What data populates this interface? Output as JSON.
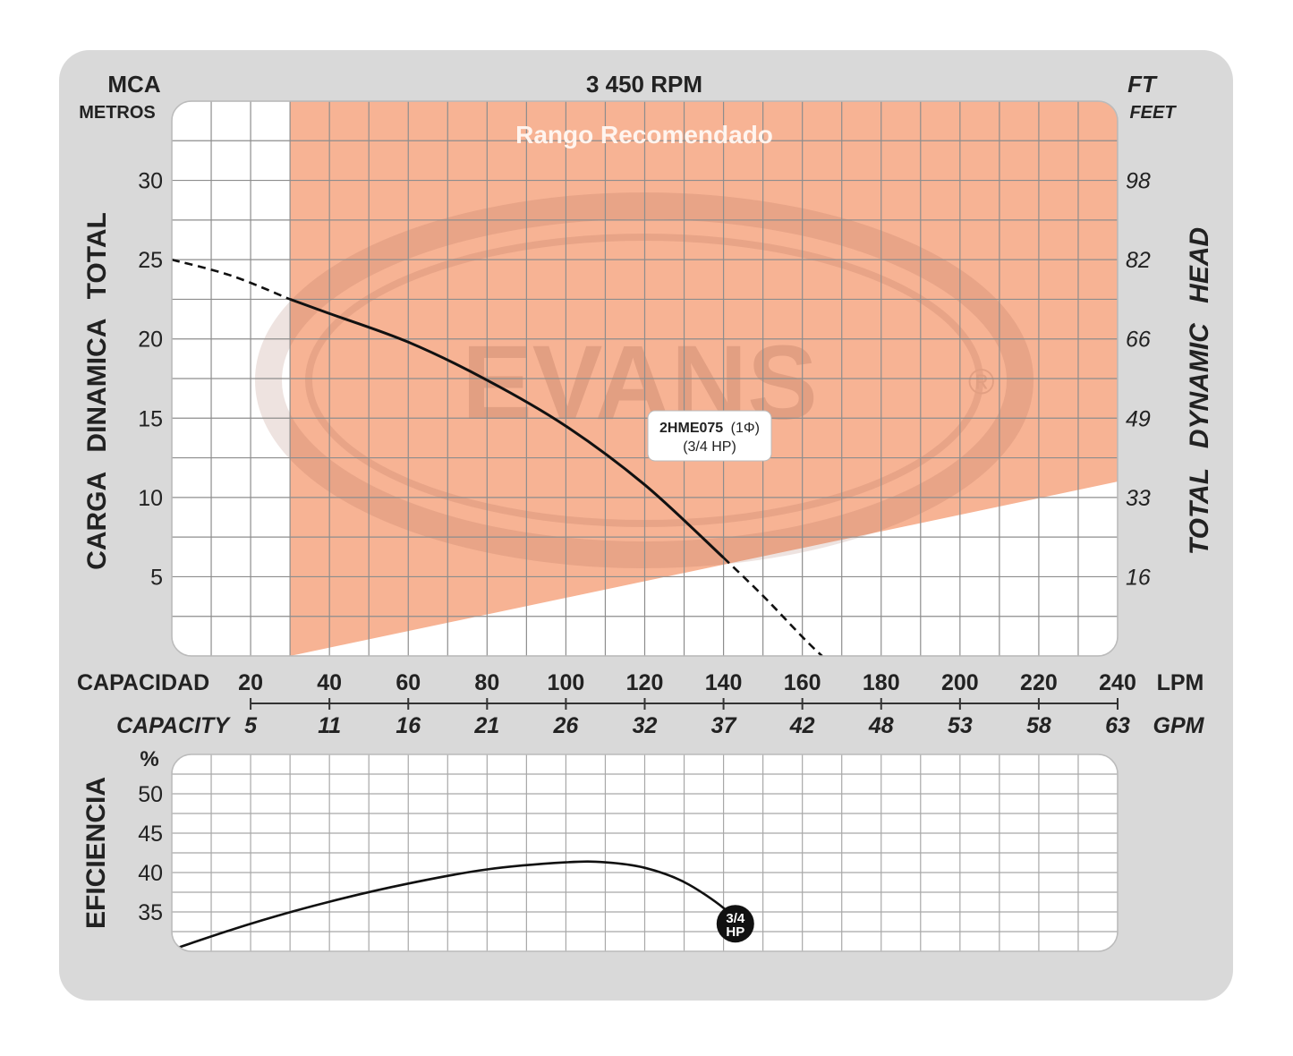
{
  "chart_data": [
    {
      "type": "line",
      "title": "3 450 RPM",
      "ylabel_left": "CARGA DINAMICA TOTAL",
      "yunit_left": "MCA",
      "yunit_left_sub": "METROS",
      "ylabel_right": "TOTAL DYNAMIC HEAD",
      "yunit_right": "FT",
      "yunit_right_sub": "FEET",
      "ylim": [
        0,
        35
      ],
      "yticks_left": [
        5,
        10,
        15,
        20,
        25,
        30
      ],
      "yticks_right": [
        "16",
        "33",
        "49",
        "66",
        "82",
        "98"
      ],
      "xlabel": "CAPACIDAD",
      "xlabel_en": "CAPACITY",
      "xunit": "LPM",
      "xunit_en": "GPM",
      "xlim": [
        0,
        240
      ],
      "xticks_lpm": [
        "20",
        "40",
        "60",
        "80",
        "100",
        "120",
        "140",
        "160",
        "180",
        "200",
        "220",
        "240"
      ],
      "xticks_gpm": [
        "5",
        "11",
        "16",
        "21",
        "26",
        "32",
        "37",
        "42",
        "48",
        "53",
        "58",
        "63"
      ],
      "grid": true,
      "recommended_range": {
        "label": "Rango Recomendado",
        "x_start": 30,
        "x_end": 240,
        "upper": 35,
        "lower_boundary": [
          [
            30,
            0
          ],
          [
            240,
            11
          ]
        ],
        "color": "#f7b394"
      },
      "watermark": "EVANS",
      "series": [
        {
          "name": "2HME075",
          "phase": "(1Φ)",
          "power": "(3/4 HP)",
          "solid": [
            [
              30,
              22.5
            ],
            [
              40,
              21.6
            ],
            [
              60,
              19.8
            ],
            [
              80,
              17.4
            ],
            [
              100,
              14.5
            ],
            [
              120,
              10.8
            ],
            [
              140,
              6.2
            ]
          ],
          "dashed_start": [
            [
              0,
              25
            ],
            [
              15,
              24
            ],
            [
              30,
              22.5
            ]
          ],
          "dashed_end": [
            [
              140,
              6.2
            ],
            [
              150,
              3.8
            ],
            [
              160,
              1.2
            ],
            [
              165,
              0
            ]
          ]
        }
      ]
    },
    {
      "type": "line",
      "ylabel": "EFICIENCIA",
      "yunit": "%",
      "ylim": [
        30,
        55
      ],
      "yticks": [
        35,
        40,
        45,
        50
      ],
      "xlim": [
        0,
        240
      ],
      "grid": true,
      "series": [
        {
          "name": "3/4 HP",
          "marker_label_top": "3/4",
          "marker_label_bottom": "HP",
          "points": [
            [
              0,
              30.2
            ],
            [
              20,
              33.5
            ],
            [
              40,
              36.3
            ],
            [
              60,
              38.6
            ],
            [
              80,
              40.4
            ],
            [
              100,
              41.3
            ],
            [
              110,
              41.3
            ],
            [
              120,
              40.6
            ],
            [
              130,
              38.8
            ],
            [
              140,
              35.5
            ],
            [
              143,
              33.5
            ]
          ]
        }
      ]
    }
  ]
}
